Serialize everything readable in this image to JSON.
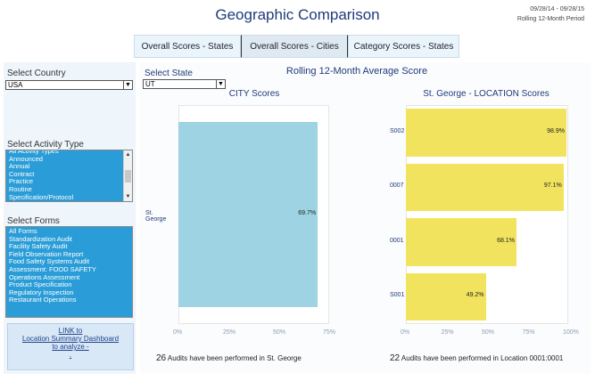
{
  "header": {
    "title": "Geographic Comparison",
    "date_range": "09/28/14 - 09/28/15",
    "period": "Rolling 12-Month Period"
  },
  "tabs": [
    {
      "label": "Overall Scores - States",
      "active": false
    },
    {
      "label": "Overall Scores - Cities",
      "active": true
    },
    {
      "label": "Category Scores - States",
      "active": false
    }
  ],
  "filters": {
    "country_label": "Select Country",
    "country_value": "USA",
    "state_label": "Select State",
    "state_value": "UT",
    "activity_label": "Select Activity Type",
    "activity_items": [
      "All Activity Types",
      "Announced",
      "Annual",
      "Contract",
      "Practice",
      "Routine",
      "Specification/Protocol"
    ],
    "forms_label": "Select Forms",
    "forms_items": [
      "All Forms",
      "Standardization Audit",
      "Facility Safety Audit",
      "Field Observation Report",
      "Food Safety Systems Audit",
      "Assessment:  FOOD SAFETY",
      "Operations Assessment",
      "Product Specification",
      "Regulatory Inspection",
      "Restaurant Operations"
    ]
  },
  "link": {
    "line1": "LINK to",
    "line2": "Location Summary Dashboard",
    "line3": "to analyze -",
    "line4": "."
  },
  "main_title": "Rolling 12-Month Average Score",
  "chart_data": [
    {
      "type": "bar",
      "orientation": "horizontal",
      "title": "CITY Scores",
      "categories": [
        "St. George"
      ],
      "values": [
        69.7
      ],
      "value_labels": [
        "69.7%"
      ],
      "xlim": [
        0,
        75
      ],
      "xticks": [
        "0%",
        "25%",
        "50%",
        "75%"
      ],
      "color": "#9dd3e3",
      "footer_count": "26",
      "footer_text": "Audits have been performed in St. George"
    },
    {
      "type": "bar",
      "orientation": "horizontal",
      "title": "St. George - LOCATION Scores",
      "categories": [
        "S002",
        "0007",
        "0001",
        "S001"
      ],
      "values": [
        98.9,
        97.1,
        68.1,
        49.2
      ],
      "value_labels": [
        "98.9%",
        "97.1%",
        "68.1%",
        "49.2%"
      ],
      "xlim": [
        0,
        100
      ],
      "xticks": [
        "0%",
        "25%",
        "50%",
        "75%",
        "100%"
      ],
      "color": "#f2e35e",
      "footer_count": "22",
      "footer_text": "Audits have been performed in Location 0001:0001"
    }
  ]
}
